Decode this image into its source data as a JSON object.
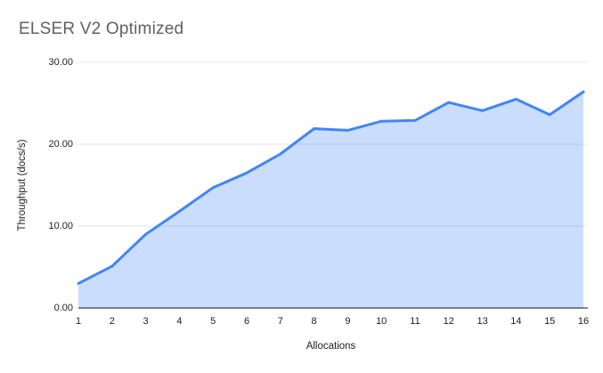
{
  "chart_data": {
    "type": "area",
    "title": "ELSER V2 Optimized",
    "xlabel": "Allocations",
    "ylabel": "Throughput (docs/s)",
    "x": [
      1,
      2,
      3,
      4,
      5,
      6,
      7,
      8,
      9,
      10,
      11,
      12,
      13,
      14,
      15,
      16
    ],
    "values": [
      3.0,
      5.1,
      9.0,
      11.8,
      14.7,
      16.5,
      18.8,
      21.9,
      21.7,
      22.8,
      22.9,
      25.1,
      24.1,
      25.5,
      23.6,
      26.4
    ],
    "ylim": [
      0,
      30
    ],
    "ytick_values": [
      0,
      10,
      20,
      30
    ],
    "ytick_labels": [
      "0.00",
      "10.00",
      "20.00",
      "30.00"
    ],
    "xtick_labels": [
      "1",
      "2",
      "3",
      "4",
      "5",
      "6",
      "7",
      "8",
      "9",
      "10",
      "11",
      "12",
      "13",
      "14",
      "15",
      "16"
    ],
    "grid": "horizontal",
    "legend": "none",
    "colors": {
      "line": "#4285f4",
      "fill": "rgba(66,133,244,0.28)",
      "gridline": "#e3e3e3",
      "axis_line": "#3c4043",
      "title_text": "#616161",
      "tick_text": "#202124"
    }
  }
}
